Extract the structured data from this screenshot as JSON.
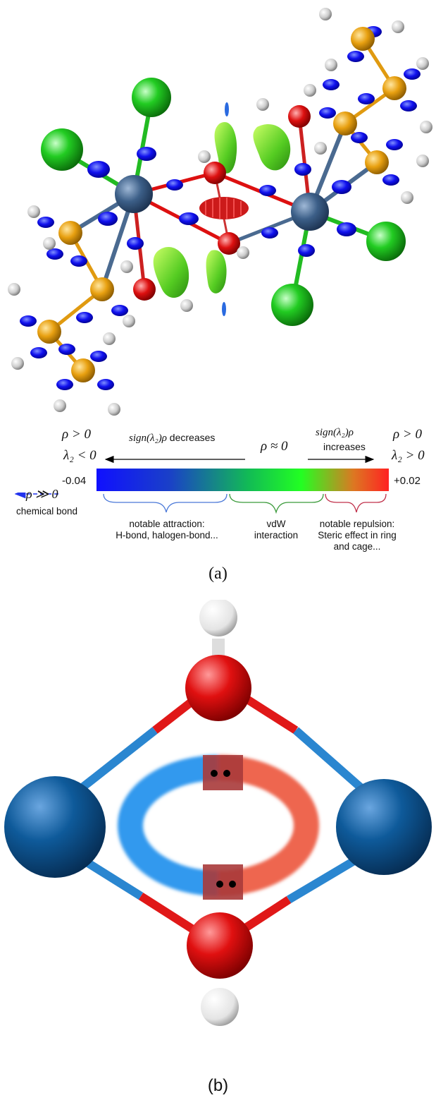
{
  "panel_a": {
    "caption": "(a)",
    "left_rho": "ρ > 0",
    "left_lambda": "λ₂ < 0",
    "right_rho": "ρ > 0",
    "right_lambda": "λ₂ > 0",
    "decrease_prefix": "sign(λ₂)ρ",
    "decrease_word": "decreases",
    "center_rho": "ρ ≈ 0",
    "increase_prefix": "sign(λ₂)ρ",
    "increase_word": "increases",
    "scale_min": "-0.04",
    "scale_max": "+0.02",
    "strong_rho": "ρ ≫ 0",
    "chemical_bond": "chemical bond",
    "attraction_line1": "notable attraction:",
    "attraction_line2": "H-bond, halogen-bond...",
    "vdw_line1": "vdW",
    "vdw_line2": "interaction",
    "repulsion_line1": "notable repulsion:",
    "repulsion_line2": "Steric effect in ring",
    "repulsion_line3": "and cage...",
    "colors": {
      "attraction": "#1010ff",
      "vdw": "#22ee22",
      "repulsion": "#ff2222",
      "brace_blue": "#4a78d8",
      "brace_green": "#3a9a3a",
      "brace_red": "#c0304a"
    }
  },
  "panel_b": {
    "caption": "(b)",
    "colors": {
      "metal": "#0e5a9a",
      "oxygen": "#e01010",
      "hydrogen": "#ffffff",
      "bond_blue": "#2a86d0",
      "ring_blue": "#3399ee",
      "ring_red": "#ee6650"
    }
  }
}
